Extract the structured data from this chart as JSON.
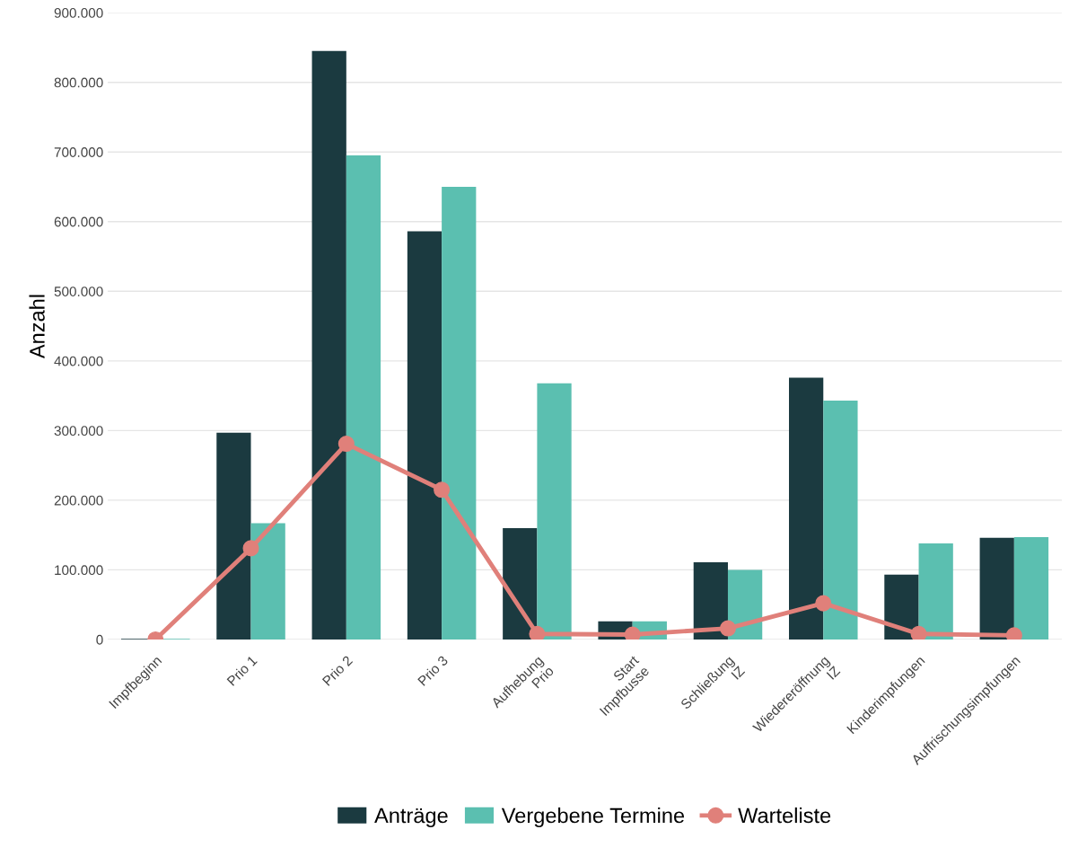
{
  "chart_data": {
    "type": "bar",
    "ylabel": "Anzahl",
    "categories": [
      "Impfbeginn",
      "Prio 1",
      "Prio 2",
      "Prio 3",
      "Aufhebung\nPrio",
      "Start\nImpfbusse",
      "Schließung\nIZ",
      "Wiedereröffnung\nIZ",
      "Kinderimpfungen",
      "Auffrischungsimpfungen"
    ],
    "series": [
      {
        "name": "Anträge",
        "color": "#1b3a40",
        "values": [
          1000,
          297000,
          845000,
          586000,
          160000,
          26000,
          111000,
          376000,
          93000,
          146000
        ]
      },
      {
        "name": "Vergebene Termine",
        "color": "#5bbfb0",
        "values": [
          1000,
          167000,
          695000,
          650000,
          368000,
          26000,
          100000,
          343000,
          138000,
          147000
        ]
      },
      {
        "name": "Warteliste",
        "type": "line",
        "color": "#e0807a",
        "marker": "circle",
        "values": [
          0,
          131000,
          281000,
          215000,
          8000,
          7000,
          16000,
          52000,
          8000,
          6000
        ]
      }
    ],
    "ylim": [
      0,
      900000
    ],
    "yticks": [
      {
        "value": 0,
        "label": "0"
      },
      {
        "value": 100000,
        "label": "100.000"
      },
      {
        "value": 200000,
        "label": "200.000"
      },
      {
        "value": 300000,
        "label": "300.000"
      },
      {
        "value": 400000,
        "label": "400.000"
      },
      {
        "value": 500000,
        "label": "500.000"
      },
      {
        "value": 600000,
        "label": "600.000"
      },
      {
        "value": 700000,
        "label": "700.000"
      },
      {
        "value": 800000,
        "label": "800.000"
      },
      {
        "value": 900000,
        "label": "900.000"
      }
    ],
    "grid": "y",
    "legend": "bottom"
  }
}
